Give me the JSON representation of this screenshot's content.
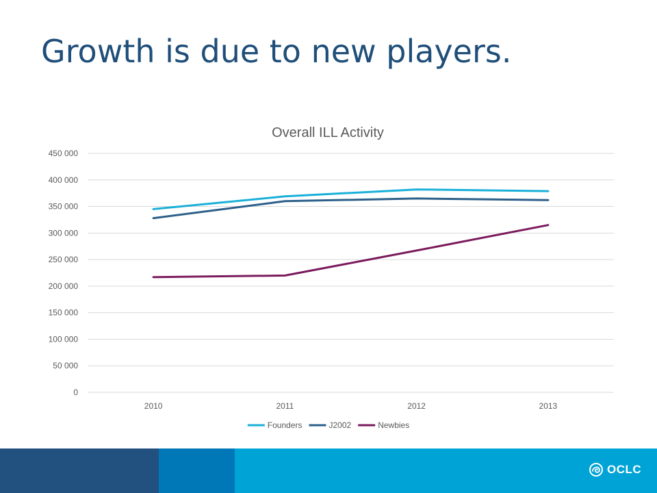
{
  "slide": {
    "title": "Growth is due to new players."
  },
  "colors": {
    "title": "#1f4e79",
    "footer_bands": [
      "#22507f",
      "#0078b8",
      "#00a3d6"
    ],
    "gridline": "#d9d9d9",
    "tick_text": "#595959"
  },
  "footer": {
    "logo_text": "OCLC",
    "logo_icon": "oclc-swirl-icon"
  },
  "chart_data": {
    "type": "line",
    "title": "Overall ILL Activity",
    "categories": [
      "2010",
      "2011",
      "2012",
      "2013"
    ],
    "ylim": [
      0,
      450000
    ],
    "yticks": [
      0,
      50000,
      100000,
      150000,
      200000,
      250000,
      300000,
      350000,
      400000,
      450000
    ],
    "ytick_labels": [
      "0",
      "50 000",
      "100 000",
      "150 000",
      "200 000",
      "250 000",
      "300 000",
      "350 000",
      "400 000",
      "450 000"
    ],
    "grid": true,
    "legend_position": "bottom",
    "series": [
      {
        "name": "Founders",
        "color": "#1ab0d8",
        "values": [
          345000,
          369000,
          382000,
          379000
        ]
      },
      {
        "name": "J2002",
        "color": "#2c5f8a",
        "values": [
          328000,
          360000,
          365000,
          362000
        ]
      },
      {
        "name": "Newbies",
        "color": "#7b1b5c",
        "values": [
          217000,
          220000,
          267000,
          315000
        ]
      }
    ]
  }
}
